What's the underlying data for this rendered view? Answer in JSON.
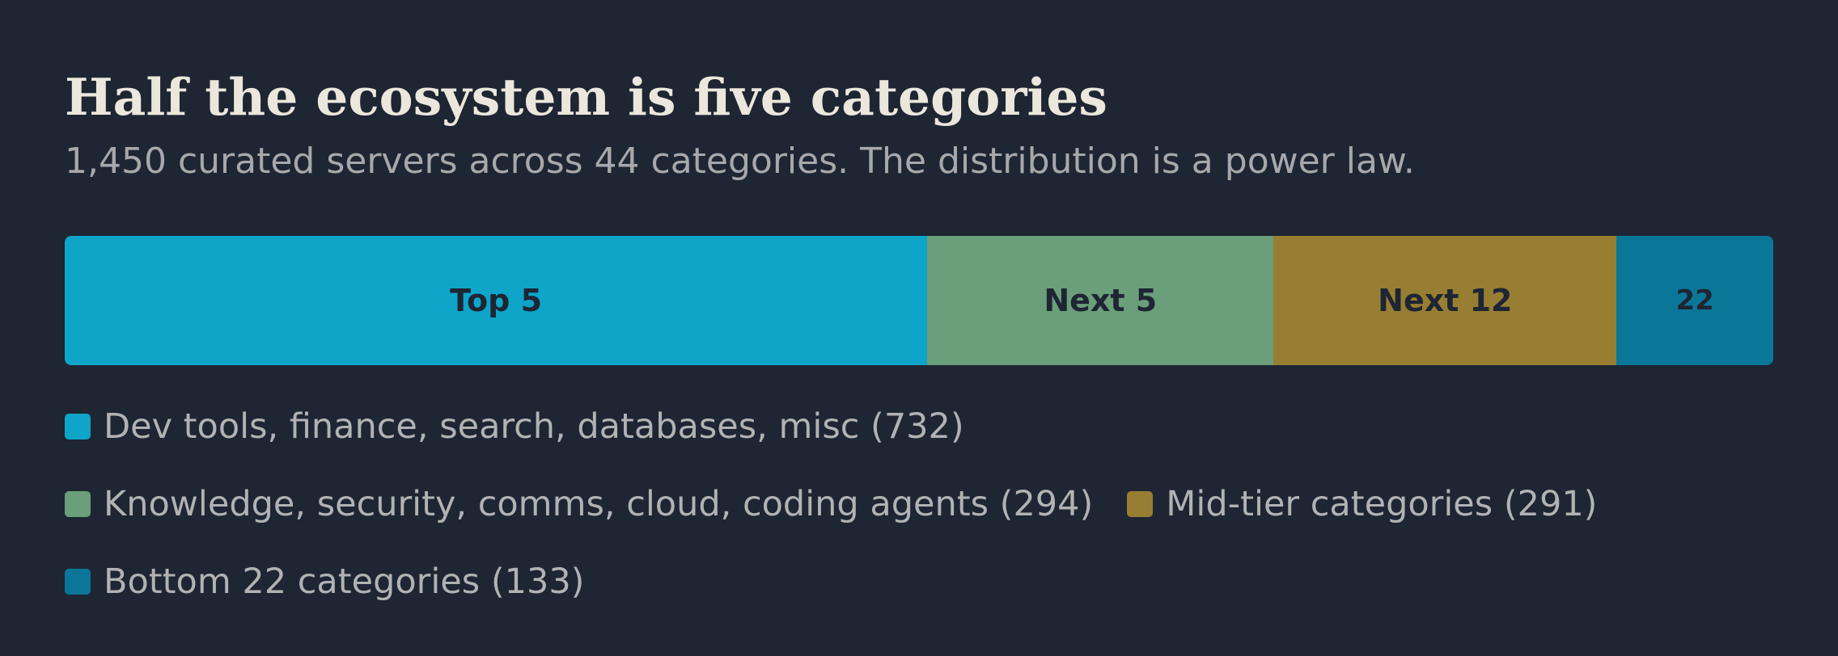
{
  "title": "Half the ecosystem is five categories",
  "subtitle": "1,450 curated servers across 44 categories. The distribution is a power law.",
  "chart_data": {
    "type": "bar",
    "orientation": "horizontal-stacked",
    "total": 1450,
    "segments": [
      {
        "label": "Top 5",
        "value": 732,
        "color": "#0ea5c9",
        "legend": "Dev tools, finance, search, databases, misc (732)"
      },
      {
        "label": "Next 5",
        "value": 294,
        "color": "#6b9e7a",
        "legend": "Knowledge, security, comms, cloud, coding agents (294)"
      },
      {
        "label": "Next 12",
        "value": 291,
        "color": "#987e33",
        "legend": "Mid-tier categories (291)"
      },
      {
        "label": "22",
        "value": 133,
        "color": "#0a7799",
        "legend": "Bottom 22 categories (133)"
      }
    ],
    "legend_position": "bottom"
  }
}
